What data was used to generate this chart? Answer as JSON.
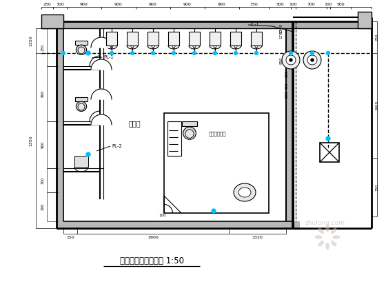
{
  "title": "卫生间给排水大样图 1:50",
  "bg_color": "#ffffff",
  "line_color": "#000000",
  "cyan_color": "#00BFFF",
  "watermark_color": "#c8beb4",
  "watermark_text": "zhulong.com",
  "room_label": "卫生间",
  "disabled_label": "无障碍卫生间",
  "pipe_label": "JL-1",
  "pl1_label": "PL-1",
  "pl2_label": "PL-2",
  "fig_width": 5.6,
  "fig_height": 4.09,
  "dpi": 100
}
